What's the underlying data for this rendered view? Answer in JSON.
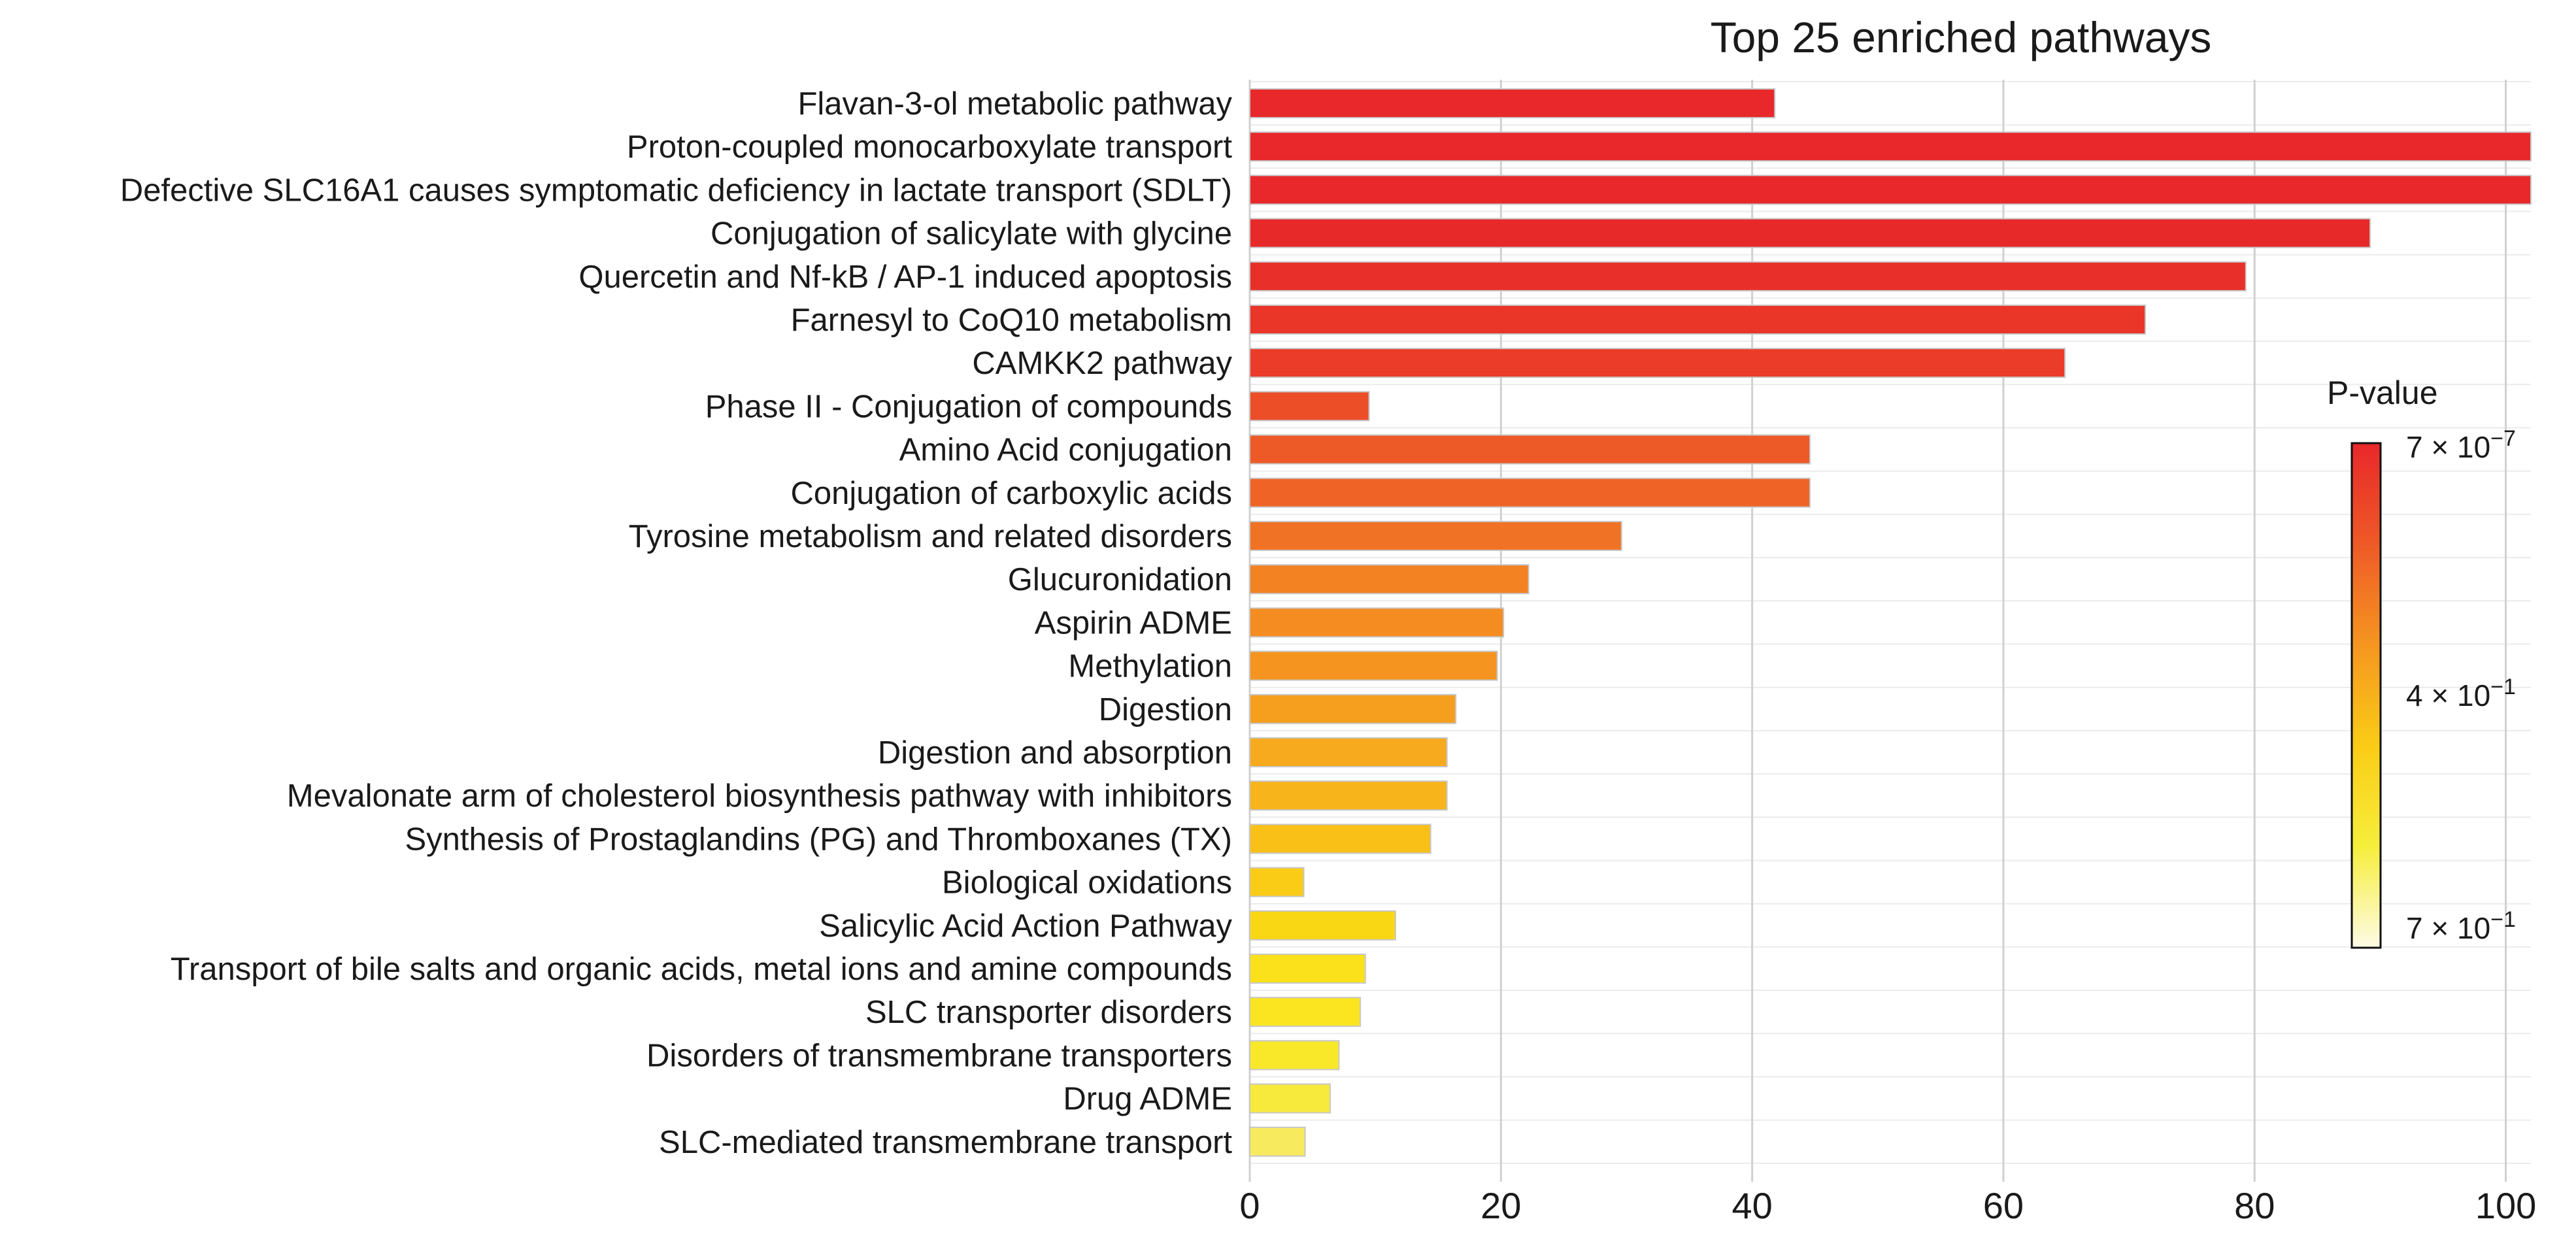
{
  "chart_data": {
    "type": "bar",
    "orientation": "horizontal",
    "title": "Top 25 enriched pathways",
    "xlabel": "",
    "ylabel": "",
    "xlim": [
      0,
      102
    ],
    "xticks": [
      0,
      20,
      40,
      60,
      80,
      100
    ],
    "grid": true,
    "categories": [
      "Flavan-3-ol metabolic pathway",
      "Proton-coupled monocarboxylate transport",
      "Defective SLC16A1 causes symptomatic deficiency in lactate transport (SDLT)",
      "Conjugation of salicylate with glycine",
      "Quercetin and Nf-kB / AP-1 induced apoptosis",
      "Farnesyl to CoQ10 metabolism",
      "CAMKK2 pathway",
      "Phase II - Conjugation of compounds",
      "Amino Acid conjugation",
      "Conjugation of carboxylic acids",
      "Tyrosine metabolism and related disorders",
      "Glucuronidation",
      "Aspirin ADME",
      "Methylation",
      "Digestion",
      "Digestion and absorption",
      "Mevalonate arm of cholesterol biosynthesis pathway with inhibitors",
      "Synthesis of Prostaglandins (PG) and Thromboxanes (TX)",
      "Biological oxidations",
      "Salicylic Acid Action Pathway",
      "Transport of bile salts and organic acids, metal ions and amine compounds",
      "SLC transporter disorders",
      "Disorders of transmembrane transporters",
      "Drug ADME",
      "SLC-mediated transmembrane transport"
    ],
    "values": [
      41.8,
      102,
      102,
      89.2,
      79.3,
      71.3,
      64.9,
      9.5,
      44.6,
      44.6,
      29.6,
      22.2,
      20.2,
      19.7,
      16.4,
      15.7,
      15.7,
      14.4,
      4.3,
      11.6,
      9.2,
      8.8,
      7.1,
      6.4,
      4.4
    ],
    "colors": [
      "#e8282a",
      "#e8282a",
      "#e8282a",
      "#e8292a",
      "#e92f29",
      "#ea3529",
      "#eb3b29",
      "#ec4e28",
      "#ee5a27",
      "#ef6426",
      "#f07225",
      "#f38223",
      "#f48c21",
      "#f59520",
      "#f69f1f",
      "#f7aa1d",
      "#f8b51b",
      "#f9c018",
      "#facc16",
      "#fad715",
      "#fae11b",
      "#fae520",
      "#f9e82a",
      "#f8ea3c",
      "#f7ea5e"
    ],
    "bar_edge": "#c7c7c7",
    "legend": {
      "title": "P-value",
      "placement": "right",
      "ticks": [
        {
          "base": "7 × 10",
          "exp": "−7"
        },
        {
          "base": "4 × 10",
          "exp": "−1"
        },
        {
          "base": "7 × 10",
          "exp": "−1"
        }
      ],
      "gradient": [
        "#e8282a",
        "#ee5a27",
        "#f59620",
        "#facc16",
        "#f6ee3c",
        "#fdfbe6"
      ]
    }
  }
}
